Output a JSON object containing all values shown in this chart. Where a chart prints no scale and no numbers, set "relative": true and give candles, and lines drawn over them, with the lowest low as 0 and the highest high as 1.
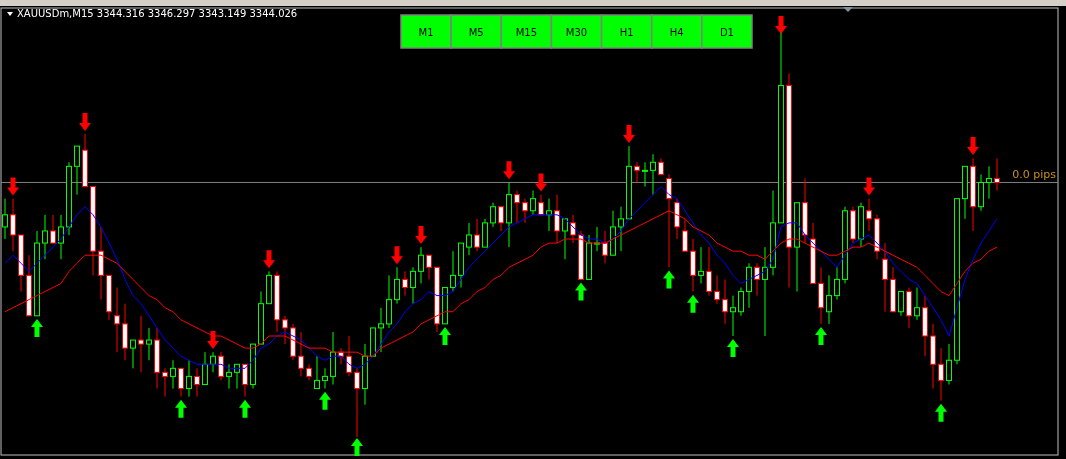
{
  "chart_data": {
    "type": "candlestick",
    "title": "XAUUSDm,M15  3344.316 3346.297 3343.149 3344.026",
    "relative": true,
    "categories": [
      null,
      null,
      null,
      null,
      null,
      null,
      null,
      null,
      null,
      null,
      null,
      null,
      null,
      null,
      null,
      null,
      null,
      null,
      null,
      null,
      null,
      null,
      null,
      null,
      null,
      null,
      null,
      null,
      null,
      null,
      null,
      null,
      null,
      null,
      null,
      null,
      null,
      null,
      null,
      null,
      null,
      null,
      null,
      null,
      null,
      null,
      null,
      null,
      null,
      null,
      null,
      null,
      null,
      null,
      null,
      null,
      null,
      null,
      null,
      null,
      null,
      null,
      null,
      null,
      null,
      null,
      null,
      null,
      null,
      null,
      null,
      null,
      null,
      null,
      null,
      null,
      null,
      null,
      null,
      null,
      null,
      null,
      null,
      null,
      null,
      null,
      null,
      null,
      null,
      null,
      null,
      null,
      null,
      null,
      null,
      null,
      null,
      null,
      null,
      null,
      null,
      null,
      null,
      null,
      null,
      null,
      null,
      null,
      null,
      null,
      null,
      null,
      null,
      null,
      null,
      null,
      null,
      null,
      null,
      null,
      null,
      null,
      null,
      null,
      null
    ],
    "ohlc": [
      [
        0.52,
        0.59,
        0.49,
        0.55
      ],
      [
        0.55,
        0.59,
        0.46,
        0.5
      ],
      [
        0.5,
        0.5,
        0.36,
        0.4
      ],
      [
        0.4,
        0.45,
        0.3,
        0.3
      ],
      [
        0.3,
        0.51,
        0.3,
        0.48
      ],
      [
        0.48,
        0.55,
        0.44,
        0.51
      ],
      [
        0.51,
        0.55,
        0.48,
        0.48
      ],
      [
        0.48,
        0.55,
        0.44,
        0.52
      ],
      [
        0.52,
        0.68,
        0.5,
        0.67
      ],
      [
        0.67,
        0.72,
        0.6,
        0.72
      ],
      [
        0.71,
        0.75,
        0.62,
        0.62
      ],
      [
        0.62,
        0.62,
        0.4,
        0.46
      ],
      [
        0.46,
        0.52,
        0.34,
        0.4
      ],
      [
        0.4,
        0.4,
        0.29,
        0.31
      ],
      [
        0.3,
        0.37,
        0.21,
        0.28
      ],
      [
        0.28,
        0.33,
        0.19,
        0.22
      ],
      [
        0.22,
        0.24,
        0.17,
        0.24
      ],
      [
        0.24,
        0.3,
        0.16,
        0.23
      ],
      [
        0.23,
        0.27,
        0.19,
        0.24
      ],
      [
        0.24,
        0.27,
        0.12,
        0.16
      ],
      [
        0.16,
        0.17,
        0.1,
        0.15
      ],
      [
        0.15,
        0.19,
        0.12,
        0.17
      ],
      [
        0.17,
        0.17,
        0.1,
        0.12
      ],
      [
        0.12,
        0.19,
        0.1,
        0.15
      ],
      [
        0.15,
        0.17,
        0.1,
        0.13
      ],
      [
        0.13,
        0.21,
        0.13,
        0.18
      ],
      [
        0.18,
        0.21,
        0.16,
        0.2
      ],
      [
        0.2,
        0.21,
        0.14,
        0.15
      ],
      [
        0.15,
        0.18,
        0.12,
        0.16
      ],
      [
        0.16,
        0.18,
        0.12,
        0.18
      ],
      [
        0.18,
        0.18,
        0.1,
        0.13
      ],
      [
        0.13,
        0.23,
        0.12,
        0.23
      ],
      [
        0.23,
        0.36,
        0.23,
        0.33
      ],
      [
        0.33,
        0.41,
        0.33,
        0.4
      ],
      [
        0.4,
        0.41,
        0.26,
        0.29
      ],
      [
        0.29,
        0.3,
        0.23,
        0.27
      ],
      [
        0.27,
        0.28,
        0.19,
        0.2
      ],
      [
        0.2,
        0.26,
        0.15,
        0.17
      ],
      [
        0.17,
        0.18,
        0.14,
        0.15
      ],
      [
        0.12,
        0.2,
        0.12,
        0.14
      ],
      [
        0.14,
        0.17,
        0.12,
        0.15
      ],
      [
        0.15,
        0.26,
        0.13,
        0.21
      ],
      [
        0.21,
        0.22,
        0.18,
        0.2
      ],
      [
        0.2,
        0.25,
        0.15,
        0.16
      ],
      [
        0.16,
        0.17,
        0,
        0.12
      ],
      [
        0.12,
        0.23,
        0.08,
        0.2
      ],
      [
        0.2,
        0.27,
        0.2,
        0.27
      ],
      [
        0.27,
        0.32,
        0.21,
        0.28
      ],
      [
        0.28,
        0.4,
        0.27,
        0.34
      ],
      [
        0.34,
        0.42,
        0.33,
        0.39
      ],
      [
        0.39,
        0.41,
        0.35,
        0.37
      ],
      [
        0.37,
        0.42,
        0.33,
        0.41
      ],
      [
        0.41,
        0.47,
        0.38,
        0.45
      ],
      [
        0.45,
        0.45,
        0.39,
        0.42
      ],
      [
        0.42,
        0.42,
        0.26,
        0.28
      ],
      [
        0.28,
        0.37,
        0.28,
        0.37
      ],
      [
        0.37,
        0.46,
        0.36,
        0.4
      ],
      [
        0.4,
        0.48,
        0.37,
        0.48
      ],
      [
        0.47,
        0.53,
        0.45,
        0.5
      ],
      [
        0.5,
        0.54,
        0.46,
        0.47
      ],
      [
        0.47,
        0.54,
        0.47,
        0.53
      ],
      [
        0.53,
        0.58,
        0.52,
        0.57
      ],
      [
        0.57,
        0.57,
        0.51,
        0.53
      ],
      [
        0.53,
        0.63,
        0.47,
        0.6
      ],
      [
        0.6,
        0.61,
        0.53,
        0.58
      ],
      [
        0.58,
        0.59,
        0.53,
        0.56
      ],
      [
        0.56,
        0.61,
        0.55,
        0.59
      ],
      [
        0.58,
        0.6,
        0.55,
        0.55
      ],
      [
        0.55,
        0.59,
        0.51,
        0.56
      ],
      [
        0.56,
        0.6,
        0.48,
        0.51
      ],
      [
        0.51,
        0.54,
        0.44,
        0.54
      ],
      [
        0.53,
        0.55,
        0.48,
        0.5
      ],
      [
        0.5,
        0.51,
        0.39,
        0.39
      ],
      [
        0.39,
        0.5,
        0.39,
        0.48
      ],
      [
        0.48,
        0.52,
        0.46,
        0.48
      ],
      [
        0.48,
        0.51,
        0.43,
        0.45
      ],
      [
        0.45,
        0.56,
        0.45,
        0.52
      ],
      [
        0.52,
        0.57,
        0.46,
        0.54
      ],
      [
        0.54,
        0.72,
        0.54,
        0.67
      ],
      [
        0.67,
        0.68,
        0.63,
        0.66
      ],
      [
        0.66,
        0.68,
        0.62,
        0.66
      ],
      [
        0.66,
        0.7,
        0.6,
        0.68
      ],
      [
        0.68,
        0.69,
        0.65,
        0.65
      ],
      [
        0.64,
        0.65,
        0.42,
        0.59
      ],
      [
        0.58,
        0.59,
        0.49,
        0.52
      ],
      [
        0.51,
        0.54,
        0.46,
        0.46
      ],
      [
        0.46,
        0.49,
        0.36,
        0.4
      ],
      [
        0.4,
        0.47,
        0.38,
        0.41
      ],
      [
        0.41,
        0.47,
        0.35,
        0.36
      ],
      [
        0.36,
        0.4,
        0.33,
        0.34
      ],
      [
        0.34,
        0.39,
        0.28,
        0.31
      ],
      [
        0.31,
        0.35,
        0.25,
        0.32
      ],
      [
        0.31,
        0.37,
        0.3,
        0.36
      ],
      [
        0.36,
        0.43,
        0.32,
        0.42
      ],
      [
        0.42,
        0.43,
        0.35,
        0.39
      ],
      [
        0.39,
        0.47,
        0.25,
        0.42
      ],
      [
        0.42,
        0.61,
        0.4,
        0.53
      ],
      [
        0.53,
        1,
        0.53,
        0.87
      ],
      [
        0.87,
        0.9,
        0.37,
        0.47
      ],
      [
        0.47,
        0.58,
        0.36,
        0.58
      ],
      [
        0.58,
        0.64,
        0.48,
        0.5
      ],
      [
        0.49,
        0.53,
        0.38,
        0.38
      ],
      [
        0.38,
        0.42,
        0.28,
        0.32
      ],
      [
        0.31,
        0.4,
        0.28,
        0.35
      ],
      [
        0.35,
        0.42,
        0.34,
        0.39
      ],
      [
        0.39,
        0.57,
        0.38,
        0.56
      ],
      [
        0.56,
        0.57,
        0.48,
        0.49
      ],
      [
        0.49,
        0.58,
        0.47,
        0.57
      ],
      [
        0.56,
        0.59,
        0.51,
        0.54
      ],
      [
        0.54,
        0.55,
        0.44,
        0.46
      ],
      [
        0.44,
        0.48,
        0.31,
        0.39
      ],
      [
        0.39,
        0.42,
        0.31,
        0.31
      ],
      [
        0.31,
        0.36,
        0.3,
        0.36
      ],
      [
        0.36,
        0.37,
        0.27,
        0.3
      ],
      [
        0.3,
        0.37,
        0.29,
        0.32
      ],
      [
        0.32,
        0.35,
        0.2,
        0.25
      ],
      [
        0.25,
        0.28,
        0.12,
        0.18
      ],
      [
        0.18,
        0.22,
        0.09,
        0.14
      ],
      [
        0.14,
        0.23,
        0.13,
        0.19
      ],
      [
        0.19,
        0.59,
        0.18,
        0.59
      ],
      [
        0.59,
        0.67,
        0.54,
        0.67
      ],
      [
        0.67,
        0.69,
        0.51,
        0.57
      ],
      [
        0.57,
        0.65,
        0.56,
        0.63
      ],
      [
        0.63,
        0.67,
        0.59,
        0.64
      ],
      [
        0.64,
        0.69,
        0.61,
        0.63
      ]
    ],
    "series": [
      {
        "type": "line",
        "color": "#0000ff",
        "values": [
          0.43,
          0.45,
          0.43,
          0.41,
          0.43,
          0.45,
          0.47,
          0.49,
          0.52,
          0.55,
          0.57,
          0.55,
          0.52,
          0.48,
          0.44,
          0.39,
          0.35,
          0.33,
          0.3,
          0.27,
          0.24,
          0.22,
          0.2,
          0.19,
          0.18,
          0.18,
          0.18,
          0.18,
          0.17,
          0.17,
          0.17,
          0.19,
          0.22,
          0.23,
          0.25,
          0.26,
          0.25,
          0.24,
          0.22,
          0.2,
          0.19,
          0.2,
          0.2,
          0.18,
          0.17,
          0.18,
          0.2,
          0.23,
          0.26,
          0.28,
          0.31,
          0.33,
          0.34,
          0.36,
          0.35,
          0.35,
          0.36,
          0.39,
          0.42,
          0.44,
          0.46,
          0.48,
          0.5,
          0.52,
          0.53,
          0.54,
          0.55,
          0.55,
          0.55,
          0.55,
          0.54,
          0.52,
          0.5,
          0.49,
          0.49,
          0.48,
          0.49,
          0.51,
          0.54,
          0.56,
          0.58,
          0.6,
          0.62,
          0.6,
          0.59,
          0.56,
          0.53,
          0.5,
          0.48,
          0.45,
          0.43,
          0.4,
          0.38,
          0.39,
          0.4,
          0.41,
          0.44,
          0.52,
          0.53,
          0.53,
          0.5,
          0.48,
          0.46,
          0.44,
          0.42,
          0.45,
          0.48,
          0.49,
          0.5,
          0.48,
          0.46,
          0.43,
          0.41,
          0.39,
          0.38,
          0.35,
          0.32,
          0.29,
          0.25,
          0.32,
          0.39,
          0.44,
          0.48,
          0.51,
          0.54
        ]
      },
      {
        "type": "line",
        "color": "#ff0000",
        "values": [
          0.31,
          0.32,
          0.33,
          0.34,
          0.35,
          0.36,
          0.37,
          0.38,
          0.41,
          0.43,
          0.45,
          0.45,
          0.45,
          0.44,
          0.43,
          0.41,
          0.39,
          0.37,
          0.35,
          0.34,
          0.32,
          0.31,
          0.29,
          0.28,
          0.27,
          0.26,
          0.25,
          0.25,
          0.24,
          0.23,
          0.22,
          0.22,
          0.23,
          0.25,
          0.25,
          0.25,
          0.24,
          0.23,
          0.22,
          0.22,
          0.22,
          0.21,
          0.21,
          0.21,
          0.21,
          0.2,
          0.2,
          0.22,
          0.23,
          0.24,
          0.25,
          0.26,
          0.28,
          0.29,
          0.3,
          0.31,
          0.31,
          0.33,
          0.34,
          0.36,
          0.37,
          0.39,
          0.4,
          0.42,
          0.43,
          0.44,
          0.45,
          0.47,
          0.48,
          0.48,
          0.49,
          0.49,
          0.49,
          0.48,
          0.48,
          0.48,
          0.49,
          0.5,
          0.51,
          0.52,
          0.53,
          0.54,
          0.55,
          0.56,
          0.55,
          0.54,
          0.52,
          0.51,
          0.5,
          0.48,
          0.47,
          0.46,
          0.46,
          0.45,
          0.45,
          0.44,
          0.46,
          0.48,
          0.49,
          0.49,
          0.48,
          0.47,
          0.46,
          0.45,
          0.45,
          0.46,
          0.47,
          0.47,
          0.48,
          0.47,
          0.46,
          0.45,
          0.44,
          0.43,
          0.42,
          0.4,
          0.38,
          0.36,
          0.35,
          0.38,
          0.41,
          0.43,
          0.44,
          0.46,
          0.47
        ]
      },
      {
        "type": "scatter",
        "color": "#ff0000",
        "values": [
          null,
          0.62,
          null,
          null,
          null,
          null,
          null,
          null,
          null,
          null,
          0.78,
          null,
          null,
          null,
          null,
          null,
          null,
          null,
          null,
          null,
          null,
          null,
          null,
          null,
          null,
          null,
          0.24,
          null,
          null,
          null,
          null,
          null,
          null,
          0.44,
          null,
          null,
          null,
          null,
          null,
          null,
          null,
          null,
          null,
          null,
          null,
          null,
          null,
          null,
          null,
          0.45,
          null,
          null,
          0.5,
          null,
          null,
          null,
          null,
          null,
          null,
          null,
          null,
          null,
          null,
          0.66,
          null,
          null,
          null,
          0.63,
          null,
          null,
          null,
          null,
          null,
          null,
          null,
          null,
          null,
          null,
          0.75,
          null,
          null,
          null,
          null,
          null,
          null,
          null,
          null,
          null,
          null,
          null,
          null,
          null,
          null,
          null,
          null,
          null,
          null,
          1.02,
          null,
          null,
          null,
          null,
          null,
          null,
          null,
          null,
          null,
          null,
          0.62,
          null,
          null,
          null,
          null,
          null,
          null,
          null,
          null,
          null,
          null,
          null,
          null,
          0.72,
          null,
          null,
          null
        ]
      },
      {
        "type": "scatter",
        "color": "#00ff00",
        "values": [
          null,
          null,
          null,
          null,
          0.27,
          null,
          null,
          null,
          null,
          null,
          null,
          null,
          null,
          null,
          null,
          null,
          null,
          null,
          null,
          null,
          null,
          null,
          0.07,
          null,
          null,
          null,
          null,
          null,
          null,
          null,
          0.07,
          null,
          null,
          null,
          null,
          null,
          null,
          null,
          null,
          null,
          0.09,
          null,
          null,
          null,
          -0.025,
          null,
          null,
          null,
          null,
          null,
          null,
          null,
          null,
          null,
          null,
          0.25,
          null,
          null,
          null,
          null,
          null,
          null,
          null,
          null,
          null,
          null,
          null,
          null,
          null,
          null,
          null,
          null,
          0.36,
          null,
          null,
          null,
          null,
          null,
          null,
          null,
          null,
          null,
          null,
          0.39,
          null,
          null,
          0.33,
          null,
          null,
          null,
          null,
          0.22,
          null,
          null,
          null,
          null,
          null,
          null,
          null,
          null,
          null,
          null,
          0.25,
          null,
          null,
          null,
          null,
          null,
          null,
          null,
          null,
          null,
          null,
          null,
          null,
          null,
          null,
          0.06,
          null,
          null,
          null,
          null,
          null,
          null,
          null
        ]
      }
    ],
    "ref_lines": [
      {
        "axis": "y",
        "value": 0.63,
        "label": "0.0 pips",
        "color": "#808080"
      }
    ],
    "annotations": [
      "M1",
      "M5",
      "M15",
      "M30",
      "H1",
      "H4",
      "D1"
    ]
  }
}
